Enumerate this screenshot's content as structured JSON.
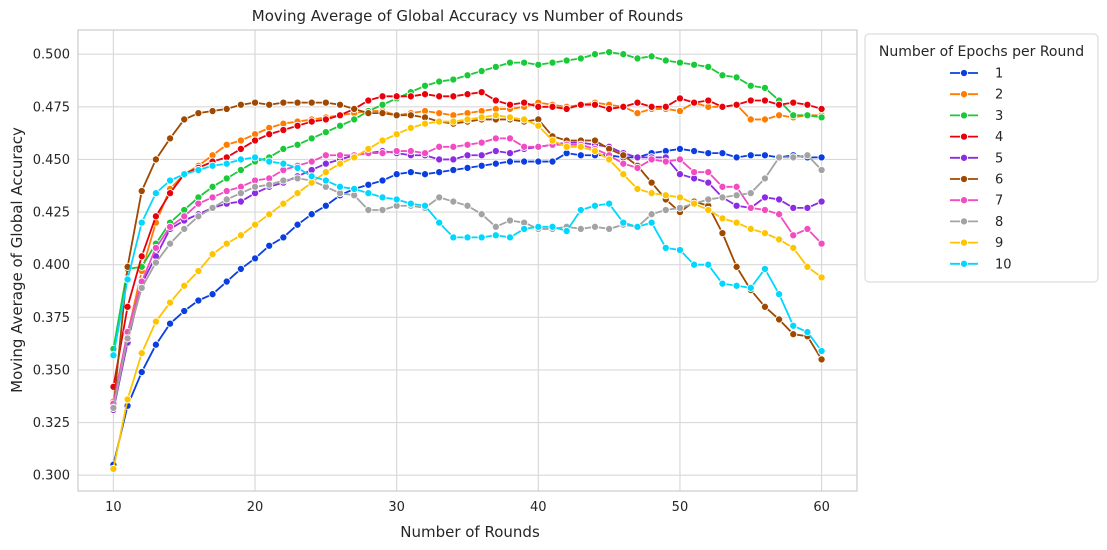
{
  "chart_data": {
    "type": "line",
    "title": "Moving Average of Global Accuracy vs Number of Rounds",
    "xlabel": "Number of Rounds",
    "ylabel": "Moving Average of Global Accuracy",
    "xlim": [
      7.5,
      62.5
    ],
    "ylim": [
      0.2925,
      0.5115
    ],
    "xticks": [
      10,
      20,
      30,
      40,
      50,
      60
    ],
    "yticks": [
      0.3,
      0.325,
      0.35,
      0.375,
      0.4,
      0.425,
      0.45,
      0.475,
      0.5
    ],
    "ytick_labels": [
      "0.300",
      "0.325",
      "0.350",
      "0.375",
      "0.400",
      "0.425",
      "0.450",
      "0.475",
      "0.500"
    ],
    "grid": true,
    "legend_title": "Number of Epochs per Round",
    "legend_position": "outside upper right",
    "marker": "circle",
    "x": [
      10,
      11,
      12,
      13,
      14,
      15,
      16,
      17,
      18,
      19,
      20,
      21,
      22,
      23,
      24,
      25,
      26,
      27,
      28,
      29,
      30,
      31,
      32,
      33,
      34,
      35,
      36,
      37,
      38,
      39,
      40,
      41,
      42,
      43,
      44,
      45,
      46,
      47,
      48,
      49,
      50,
      51,
      52,
      53,
      54,
      55,
      56,
      57,
      58,
      59,
      60
    ],
    "series": [
      {
        "name": "1",
        "color": "#0b3ee0",
        "values": [
          0.305,
          0.333,
          0.349,
          0.362,
          0.372,
          0.378,
          0.383,
          0.386,
          0.392,
          0.398,
          0.403,
          0.409,
          0.413,
          0.419,
          0.424,
          0.428,
          0.433,
          0.436,
          0.438,
          0.44,
          0.443,
          0.444,
          0.443,
          0.444,
          0.445,
          0.446,
          0.447,
          0.448,
          0.449,
          0.449,
          0.449,
          0.449,
          0.453,
          0.452,
          0.452,
          0.452,
          0.451,
          0.451,
          0.453,
          0.454,
          0.455,
          0.454,
          0.453,
          0.453,
          0.451,
          0.452,
          0.452,
          0.451,
          0.452,
          0.451,
          0.451
        ]
      },
      {
        "name": "2",
        "color": "#ff7c00",
        "values": [
          0.335,
          0.367,
          0.397,
          0.42,
          0.436,
          0.443,
          0.447,
          0.452,
          0.457,
          0.459,
          0.462,
          0.465,
          0.467,
          0.468,
          0.469,
          0.47,
          0.471,
          0.472,
          0.473,
          0.473,
          0.471,
          0.472,
          0.473,
          0.472,
          0.471,
          0.472,
          0.473,
          0.474,
          0.474,
          0.475,
          0.477,
          0.476,
          0.475,
          0.476,
          0.477,
          0.476,
          0.475,
          0.472,
          0.474,
          0.474,
          0.473,
          0.477,
          0.475,
          0.475,
          0.476,
          0.469,
          0.469,
          0.471,
          0.47,
          0.471,
          0.471
        ]
      },
      {
        "name": "3",
        "color": "#1ac938",
        "values": [
          0.36,
          0.398,
          0.399,
          0.41,
          0.42,
          0.426,
          0.432,
          0.437,
          0.441,
          0.445,
          0.449,
          0.451,
          0.455,
          0.457,
          0.46,
          0.463,
          0.466,
          0.469,
          0.473,
          0.476,
          0.479,
          0.482,
          0.485,
          0.487,
          0.488,
          0.49,
          0.492,
          0.494,
          0.496,
          0.496,
          0.495,
          0.496,
          0.497,
          0.498,
          0.5,
          0.501,
          0.5,
          0.498,
          0.499,
          0.497,
          0.496,
          0.495,
          0.494,
          0.49,
          0.489,
          0.485,
          0.484,
          0.478,
          0.471,
          0.471,
          0.47
        ]
      },
      {
        "name": "4",
        "color": "#e8000b",
        "values": [
          0.342,
          0.38,
          0.404,
          0.423,
          0.434,
          0.443,
          0.446,
          0.449,
          0.451,
          0.455,
          0.459,
          0.462,
          0.464,
          0.466,
          0.468,
          0.469,
          0.471,
          0.474,
          0.478,
          0.48,
          0.48,
          0.48,
          0.481,
          0.48,
          0.48,
          0.481,
          0.482,
          0.478,
          0.476,
          0.477,
          0.475,
          0.475,
          0.474,
          0.476,
          0.476,
          0.474,
          0.475,
          0.477,
          0.475,
          0.475,
          0.479,
          0.477,
          0.478,
          0.475,
          0.476,
          0.478,
          0.478,
          0.476,
          0.477,
          0.476,
          0.474
        ]
      },
      {
        "name": "5",
        "color": "#8b2be2",
        "values": [
          0.331,
          0.363,
          0.391,
          0.404,
          0.417,
          0.421,
          0.424,
          0.427,
          0.429,
          0.43,
          0.434,
          0.437,
          0.439,
          0.442,
          0.445,
          0.448,
          0.45,
          0.452,
          0.453,
          0.454,
          0.453,
          0.452,
          0.452,
          0.45,
          0.45,
          0.452,
          0.452,
          0.454,
          0.453,
          0.455,
          0.456,
          0.457,
          0.458,
          0.458,
          0.457,
          0.456,
          0.453,
          0.451,
          0.451,
          0.451,
          0.443,
          0.441,
          0.439,
          0.432,
          0.428,
          0.427,
          0.432,
          0.431,
          0.427,
          0.427,
          0.43
        ]
      },
      {
        "name": "6",
        "color": "#9f4800",
        "values": [
          0.332,
          0.399,
          0.435,
          0.45,
          0.46,
          0.469,
          0.472,
          0.473,
          0.474,
          0.476,
          0.477,
          0.476,
          0.477,
          0.477,
          0.477,
          0.477,
          0.476,
          0.474,
          0.472,
          0.472,
          0.471,
          0.471,
          0.47,
          0.468,
          0.467,
          0.468,
          0.469,
          0.469,
          0.469,
          0.468,
          0.469,
          0.461,
          0.459,
          0.459,
          0.459,
          0.455,
          0.452,
          0.447,
          0.439,
          0.431,
          0.425,
          0.43,
          0.428,
          0.415,
          0.399,
          0.388,
          0.38,
          0.374,
          0.367,
          0.366,
          0.355
        ]
      },
      {
        "name": "7",
        "color": "#f14cc1",
        "values": [
          0.334,
          0.368,
          0.392,
          0.408,
          0.418,
          0.423,
          0.429,
          0.432,
          0.435,
          0.437,
          0.44,
          0.441,
          0.445,
          0.447,
          0.449,
          0.452,
          0.452,
          0.452,
          0.453,
          0.453,
          0.454,
          0.454,
          0.453,
          0.456,
          0.456,
          0.457,
          0.458,
          0.46,
          0.46,
          0.456,
          0.456,
          0.457,
          0.457,
          0.457,
          0.455,
          0.452,
          0.448,
          0.446,
          0.45,
          0.449,
          0.45,
          0.444,
          0.444,
          0.437,
          0.437,
          0.427,
          0.426,
          0.424,
          0.414,
          0.417,
          0.41
        ]
      },
      {
        "name": "8",
        "color": "#a3a3a3",
        "values": [
          0.332,
          0.365,
          0.389,
          0.401,
          0.41,
          0.417,
          0.423,
          0.427,
          0.431,
          0.434,
          0.437,
          0.438,
          0.44,
          0.441,
          0.44,
          0.437,
          0.434,
          0.433,
          0.426,
          0.426,
          0.428,
          0.428,
          0.427,
          0.432,
          0.43,
          0.428,
          0.424,
          0.418,
          0.421,
          0.42,
          0.417,
          0.417,
          0.418,
          0.417,
          0.418,
          0.417,
          0.419,
          0.418,
          0.424,
          0.426,
          0.427,
          0.429,
          0.431,
          0.432,
          0.433,
          0.434,
          0.441,
          0.451,
          0.451,
          0.452,
          0.445
        ]
      },
      {
        "name": "9",
        "color": "#ffc400",
        "values": [
          0.303,
          0.336,
          0.358,
          0.373,
          0.382,
          0.39,
          0.397,
          0.405,
          0.41,
          0.414,
          0.419,
          0.424,
          0.429,
          0.434,
          0.439,
          0.444,
          0.448,
          0.451,
          0.455,
          0.459,
          0.462,
          0.465,
          0.467,
          0.468,
          0.468,
          0.469,
          0.47,
          0.471,
          0.47,
          0.469,
          0.466,
          0.459,
          0.456,
          0.456,
          0.454,
          0.45,
          0.443,
          0.436,
          0.434,
          0.433,
          0.432,
          0.429,
          0.426,
          0.422,
          0.42,
          0.417,
          0.415,
          0.412,
          0.408,
          0.399,
          0.394
        ]
      },
      {
        "name": "10",
        "color": "#00d7ff",
        "values": [
          0.357,
          0.393,
          0.42,
          0.434,
          0.44,
          0.443,
          0.445,
          0.447,
          0.448,
          0.45,
          0.451,
          0.449,
          0.448,
          0.446,
          0.442,
          0.44,
          0.437,
          0.436,
          0.434,
          0.432,
          0.431,
          0.429,
          0.428,
          0.42,
          0.413,
          0.413,
          0.413,
          0.414,
          0.413,
          0.417,
          0.418,
          0.418,
          0.416,
          0.426,
          0.428,
          0.429,
          0.42,
          0.418,
          0.42,
          0.408,
          0.407,
          0.4,
          0.4,
          0.391,
          0.39,
          0.389,
          0.398,
          0.386,
          0.371,
          0.368,
          0.359
        ]
      }
    ]
  }
}
